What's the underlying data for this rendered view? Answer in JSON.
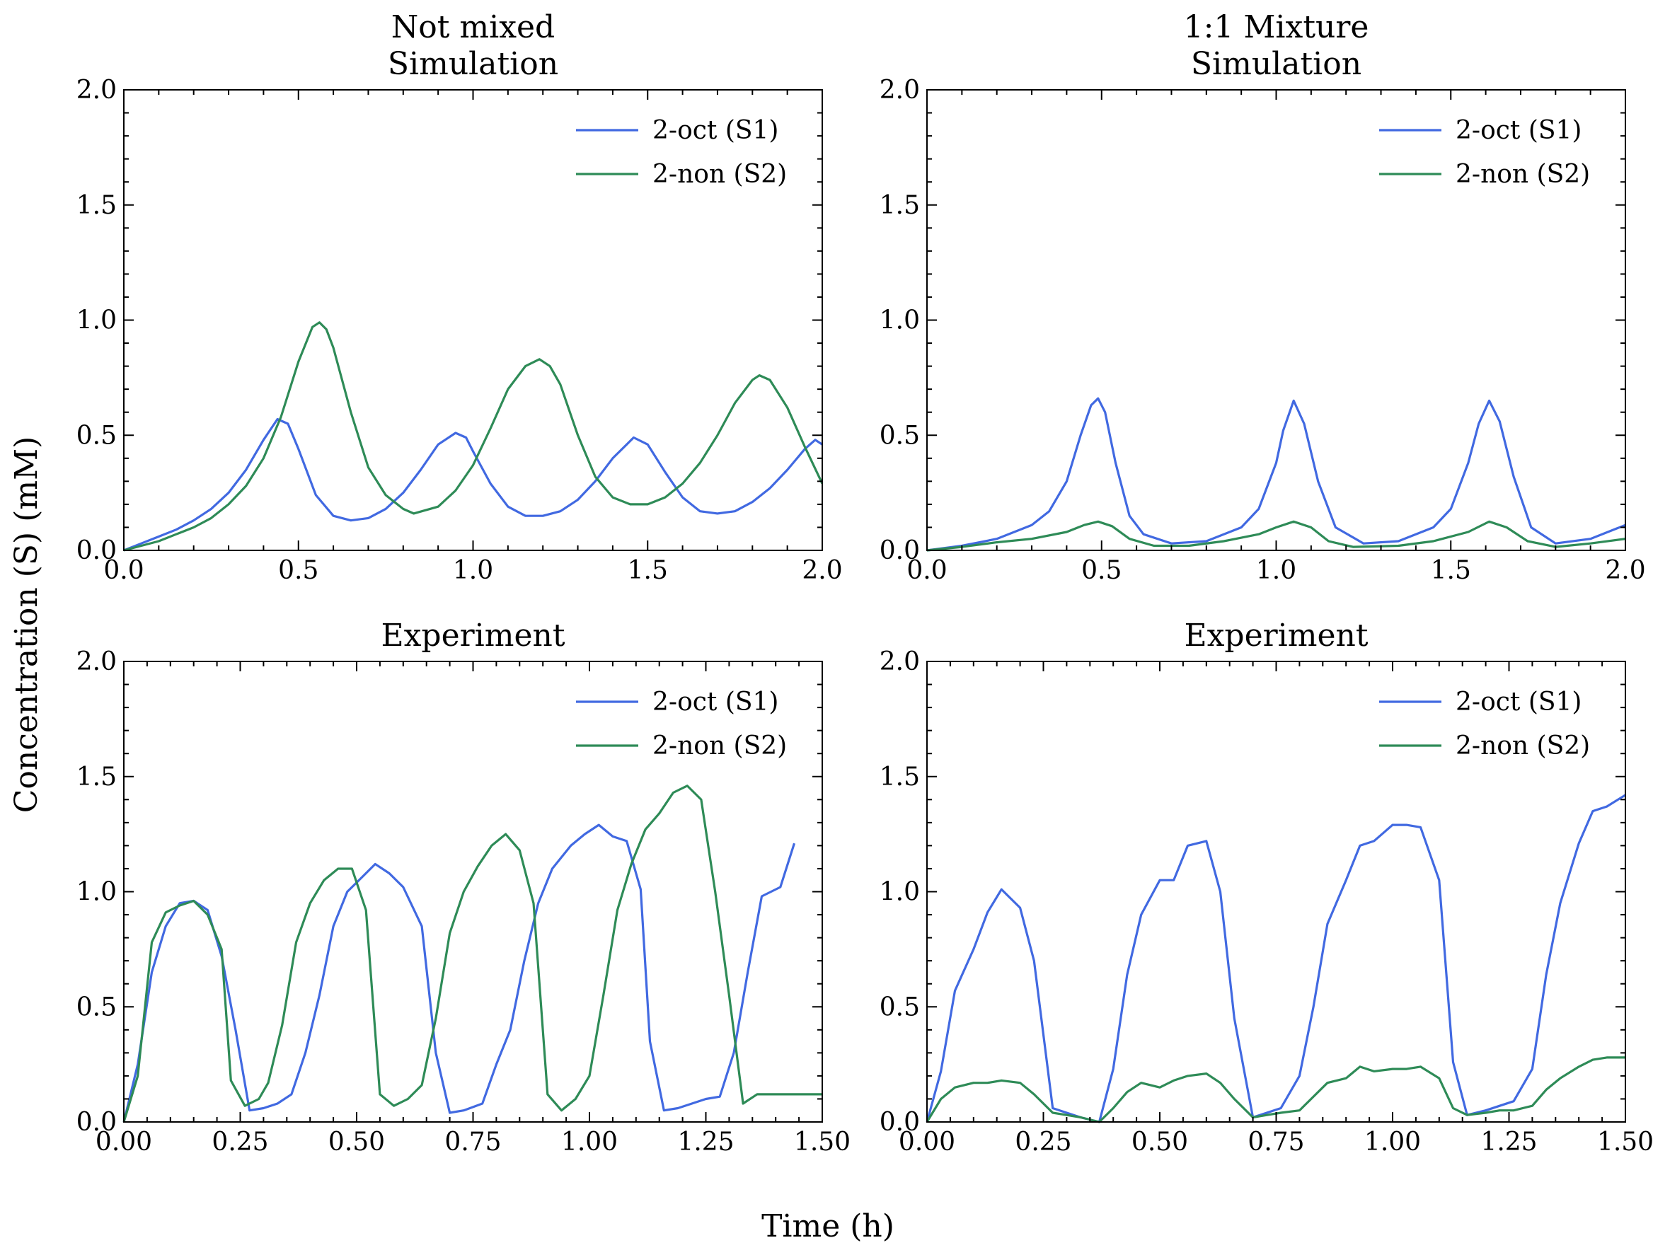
{
  "figure": {
    "ylabel": "Concentration (S) (mM)",
    "xlabel": "Time (h)"
  },
  "colors": {
    "s1": "#4169e1",
    "s2": "#2e8b57"
  },
  "chart_data": [
    {
      "type": "line",
      "title": [
        "Not mixed",
        "Simulation"
      ],
      "xlim": [
        0,
        2
      ],
      "ylim": [
        0,
        2
      ],
      "xticks": [
        "0.0",
        "0.5",
        "1.0",
        "1.5",
        "2.0"
      ],
      "yticks": [
        "0.0",
        "0.5",
        "1.0",
        "1.5",
        "2.0"
      ],
      "legend_position": "upper-right",
      "series": [
        {
          "name": "2-oct (S1)",
          "x": [
            0,
            0.05,
            0.1,
            0.15,
            0.2,
            0.25,
            0.3,
            0.35,
            0.4,
            0.44,
            0.47,
            0.5,
            0.55,
            0.6,
            0.65,
            0.7,
            0.75,
            0.8,
            0.85,
            0.9,
            0.95,
            0.98,
            1.0,
            1.05,
            1.1,
            1.15,
            1.2,
            1.25,
            1.3,
            1.35,
            1.4,
            1.46,
            1.5,
            1.55,
            1.6,
            1.65,
            1.7,
            1.75,
            1.8,
            1.85,
            1.9,
            1.95,
            1.98,
            2.0
          ],
          "y": [
            0,
            0.03,
            0.06,
            0.09,
            0.13,
            0.18,
            0.25,
            0.35,
            0.48,
            0.57,
            0.55,
            0.44,
            0.24,
            0.15,
            0.13,
            0.14,
            0.18,
            0.25,
            0.35,
            0.46,
            0.51,
            0.49,
            0.43,
            0.29,
            0.19,
            0.15,
            0.15,
            0.17,
            0.22,
            0.3,
            0.4,
            0.49,
            0.46,
            0.34,
            0.23,
            0.17,
            0.16,
            0.17,
            0.21,
            0.27,
            0.35,
            0.44,
            0.48,
            0.46
          ]
        },
        {
          "name": "2-non (S2)",
          "x": [
            0,
            0.05,
            0.1,
            0.15,
            0.2,
            0.25,
            0.3,
            0.35,
            0.4,
            0.45,
            0.5,
            0.54,
            0.56,
            0.58,
            0.6,
            0.65,
            0.7,
            0.75,
            0.8,
            0.83,
            0.9,
            0.95,
            1.0,
            1.05,
            1.1,
            1.15,
            1.19,
            1.22,
            1.25,
            1.3,
            1.35,
            1.4,
            1.45,
            1.5,
            1.55,
            1.6,
            1.65,
            1.7,
            1.75,
            1.8,
            1.82,
            1.85,
            1.9,
            1.95,
            2.0
          ],
          "y": [
            0,
            0.02,
            0.04,
            0.07,
            0.1,
            0.14,
            0.2,
            0.28,
            0.4,
            0.58,
            0.82,
            0.97,
            0.99,
            0.96,
            0.88,
            0.6,
            0.36,
            0.24,
            0.18,
            0.16,
            0.19,
            0.26,
            0.37,
            0.53,
            0.7,
            0.8,
            0.83,
            0.8,
            0.72,
            0.5,
            0.32,
            0.23,
            0.2,
            0.2,
            0.23,
            0.29,
            0.38,
            0.5,
            0.64,
            0.74,
            0.76,
            0.74,
            0.62,
            0.45,
            0.29
          ]
        }
      ]
    },
    {
      "type": "line",
      "title": [
        "1:1 Mixture",
        "Simulation"
      ],
      "xlim": [
        0,
        2
      ],
      "ylim": [
        0,
        2
      ],
      "xticks": [
        "0.0",
        "0.5",
        "1.0",
        "1.5",
        "2.0"
      ],
      "yticks": [
        "0.0",
        "0.5",
        "1.0",
        "1.5",
        "2.0"
      ],
      "legend_position": "upper-right",
      "series": [
        {
          "name": "2-oct (S1)",
          "x": [
            0,
            0.1,
            0.2,
            0.3,
            0.35,
            0.4,
            0.44,
            0.47,
            0.49,
            0.51,
            0.54,
            0.58,
            0.62,
            0.7,
            0.8,
            0.9,
            0.95,
            1.0,
            1.02,
            1.05,
            1.08,
            1.12,
            1.17,
            1.25,
            1.35,
            1.45,
            1.5,
            1.55,
            1.58,
            1.61,
            1.64,
            1.68,
            1.73,
            1.8,
            1.9,
            2.0
          ],
          "y": [
            0,
            0.02,
            0.05,
            0.11,
            0.17,
            0.3,
            0.5,
            0.63,
            0.66,
            0.6,
            0.38,
            0.15,
            0.07,
            0.03,
            0.04,
            0.1,
            0.18,
            0.38,
            0.52,
            0.65,
            0.55,
            0.3,
            0.1,
            0.03,
            0.04,
            0.1,
            0.18,
            0.38,
            0.55,
            0.65,
            0.56,
            0.32,
            0.1,
            0.03,
            0.05,
            0.11
          ]
        },
        {
          "name": "2-non (S2)",
          "x": [
            0,
            0.1,
            0.2,
            0.3,
            0.4,
            0.45,
            0.49,
            0.53,
            0.58,
            0.65,
            0.75,
            0.85,
            0.95,
            1.0,
            1.05,
            1.1,
            1.15,
            1.22,
            1.35,
            1.45,
            1.55,
            1.61,
            1.66,
            1.72,
            1.8,
            1.9,
            2.0
          ],
          "y": [
            0,
            0.015,
            0.035,
            0.05,
            0.08,
            0.11,
            0.125,
            0.105,
            0.05,
            0.02,
            0.02,
            0.04,
            0.07,
            0.1,
            0.125,
            0.1,
            0.04,
            0.015,
            0.02,
            0.04,
            0.08,
            0.125,
            0.1,
            0.04,
            0.015,
            0.03,
            0.05
          ]
        }
      ]
    },
    {
      "type": "line",
      "title": [
        "Experiment"
      ],
      "xlim": [
        0,
        1.5
      ],
      "ylim": [
        0,
        2
      ],
      "xticks": [
        "0.00",
        "0.25",
        "0.50",
        "0.75",
        "1.00",
        "1.25",
        "1.50"
      ],
      "yticks": [
        "0.0",
        "0.5",
        "1.0",
        "1.5",
        "2.0"
      ],
      "legend_position": "upper-right",
      "series": [
        {
          "name": "2-oct (S1)",
          "x": [
            0,
            0.03,
            0.06,
            0.09,
            0.12,
            0.15,
            0.18,
            0.21,
            0.24,
            0.27,
            0.3,
            0.33,
            0.36,
            0.39,
            0.42,
            0.45,
            0.48,
            0.51,
            0.54,
            0.57,
            0.6,
            0.64,
            0.67,
            0.7,
            0.73,
            0.77,
            0.8,
            0.83,
            0.86,
            0.89,
            0.92,
            0.96,
            0.99,
            1.02,
            1.05,
            1.08,
            1.11,
            1.13,
            1.16,
            1.19,
            1.22,
            1.25,
            1.28,
            1.31,
            1.34,
            1.37,
            1.41,
            1.44
          ],
          "y": [
            0,
            0.25,
            0.65,
            0.85,
            0.95,
            0.96,
            0.92,
            0.72,
            0.4,
            0.05,
            0.06,
            0.08,
            0.12,
            0.3,
            0.55,
            0.85,
            1.0,
            1.06,
            1.12,
            1.08,
            1.02,
            0.85,
            0.3,
            0.04,
            0.05,
            0.08,
            0.25,
            0.4,
            0.7,
            0.95,
            1.1,
            1.2,
            1.25,
            1.29,
            1.24,
            1.22,
            1.01,
            0.35,
            0.05,
            0.06,
            0.08,
            0.1,
            0.11,
            0.3,
            0.65,
            0.98,
            1.02,
            1.21
          ]
        },
        {
          "name": "2-non (S2)",
          "x": [
            0,
            0.03,
            0.06,
            0.09,
            0.12,
            0.15,
            0.18,
            0.21,
            0.23,
            0.26,
            0.29,
            0.31,
            0.34,
            0.37,
            0.4,
            0.43,
            0.46,
            0.49,
            0.52,
            0.55,
            0.58,
            0.61,
            0.64,
            0.67,
            0.7,
            0.73,
            0.76,
            0.79,
            0.82,
            0.85,
            0.88,
            0.91,
            0.94,
            0.97,
            1.0,
            1.03,
            1.06,
            1.09,
            1.12,
            1.15,
            1.18,
            1.21,
            1.24,
            1.27,
            1.3,
            1.33,
            1.36,
            1.39,
            1.42,
            1.45,
            1.5
          ],
          "y": [
            0,
            0.2,
            0.78,
            0.91,
            0.94,
            0.96,
            0.9,
            0.75,
            0.18,
            0.07,
            0.1,
            0.17,
            0.42,
            0.78,
            0.95,
            1.05,
            1.1,
            1.1,
            0.92,
            0.12,
            0.07,
            0.1,
            0.16,
            0.45,
            0.82,
            1.0,
            1.11,
            1.2,
            1.25,
            1.18,
            0.95,
            0.12,
            0.05,
            0.1,
            0.2,
            0.55,
            0.92,
            1.12,
            1.27,
            1.34,
            1.43,
            1.46,
            1.4,
            1.0,
            0.55,
            0.08,
            0.12,
            0.12,
            0.12,
            0.12,
            0.12
          ]
        }
      ]
    },
    {
      "type": "line",
      "title": [
        "Experiment"
      ],
      "xlim": [
        0,
        1.5
      ],
      "ylim": [
        0,
        2
      ],
      "xticks": [
        "0.00",
        "0.25",
        "0.50",
        "0.75",
        "1.00",
        "1.25",
        "1.50"
      ],
      "yticks": [
        "0.0",
        "0.5",
        "1.0",
        "1.5",
        "2.0"
      ],
      "legend_position": "upper-right",
      "series": [
        {
          "name": "2-oct (S1)",
          "x": [
            0,
            0.03,
            0.06,
            0.1,
            0.13,
            0.16,
            0.2,
            0.23,
            0.27,
            0.3,
            0.33,
            0.37,
            0.4,
            0.43,
            0.46,
            0.5,
            0.53,
            0.56,
            0.6,
            0.63,
            0.66,
            0.7,
            0.73,
            0.76,
            0.8,
            0.83,
            0.86,
            0.9,
            0.93,
            0.96,
            1.0,
            1.03,
            1.06,
            1.1,
            1.13,
            1.16,
            1.2,
            1.23,
            1.26,
            1.3,
            1.33,
            1.36,
            1.4,
            1.43,
            1.46,
            1.5
          ],
          "y": [
            0,
            0.22,
            0.57,
            0.75,
            0.91,
            1.01,
            0.93,
            0.7,
            0.06,
            0.04,
            0.02,
            0.0,
            0.23,
            0.64,
            0.9,
            1.05,
            1.05,
            1.2,
            1.22,
            1.0,
            0.45,
            0.02,
            0.04,
            0.06,
            0.2,
            0.5,
            0.86,
            1.05,
            1.2,
            1.22,
            1.29,
            1.29,
            1.28,
            1.05,
            0.26,
            0.03,
            0.05,
            0.07,
            0.09,
            0.23,
            0.64,
            0.95,
            1.21,
            1.35,
            1.37,
            1.42
          ]
        },
        {
          "name": "2-non (S2)",
          "x": [
            0,
            0.03,
            0.06,
            0.1,
            0.13,
            0.16,
            0.2,
            0.23,
            0.27,
            0.3,
            0.33,
            0.37,
            0.4,
            0.43,
            0.46,
            0.5,
            0.53,
            0.56,
            0.6,
            0.63,
            0.66,
            0.7,
            0.73,
            0.76,
            0.8,
            0.83,
            0.86,
            0.9,
            0.93,
            0.96,
            1.0,
            1.03,
            1.06,
            1.1,
            1.13,
            1.16,
            1.2,
            1.23,
            1.26,
            1.3,
            1.33,
            1.36,
            1.4,
            1.43,
            1.46,
            1.5
          ],
          "y": [
            0,
            0.1,
            0.15,
            0.17,
            0.17,
            0.18,
            0.17,
            0.12,
            0.04,
            0.03,
            0.02,
            0.0,
            0.06,
            0.13,
            0.17,
            0.15,
            0.18,
            0.2,
            0.21,
            0.17,
            0.1,
            0.02,
            0.03,
            0.04,
            0.05,
            0.11,
            0.17,
            0.19,
            0.24,
            0.22,
            0.23,
            0.23,
            0.24,
            0.19,
            0.06,
            0.03,
            0.04,
            0.05,
            0.05,
            0.07,
            0.14,
            0.19,
            0.24,
            0.27,
            0.28,
            0.28
          ]
        }
      ]
    }
  ]
}
